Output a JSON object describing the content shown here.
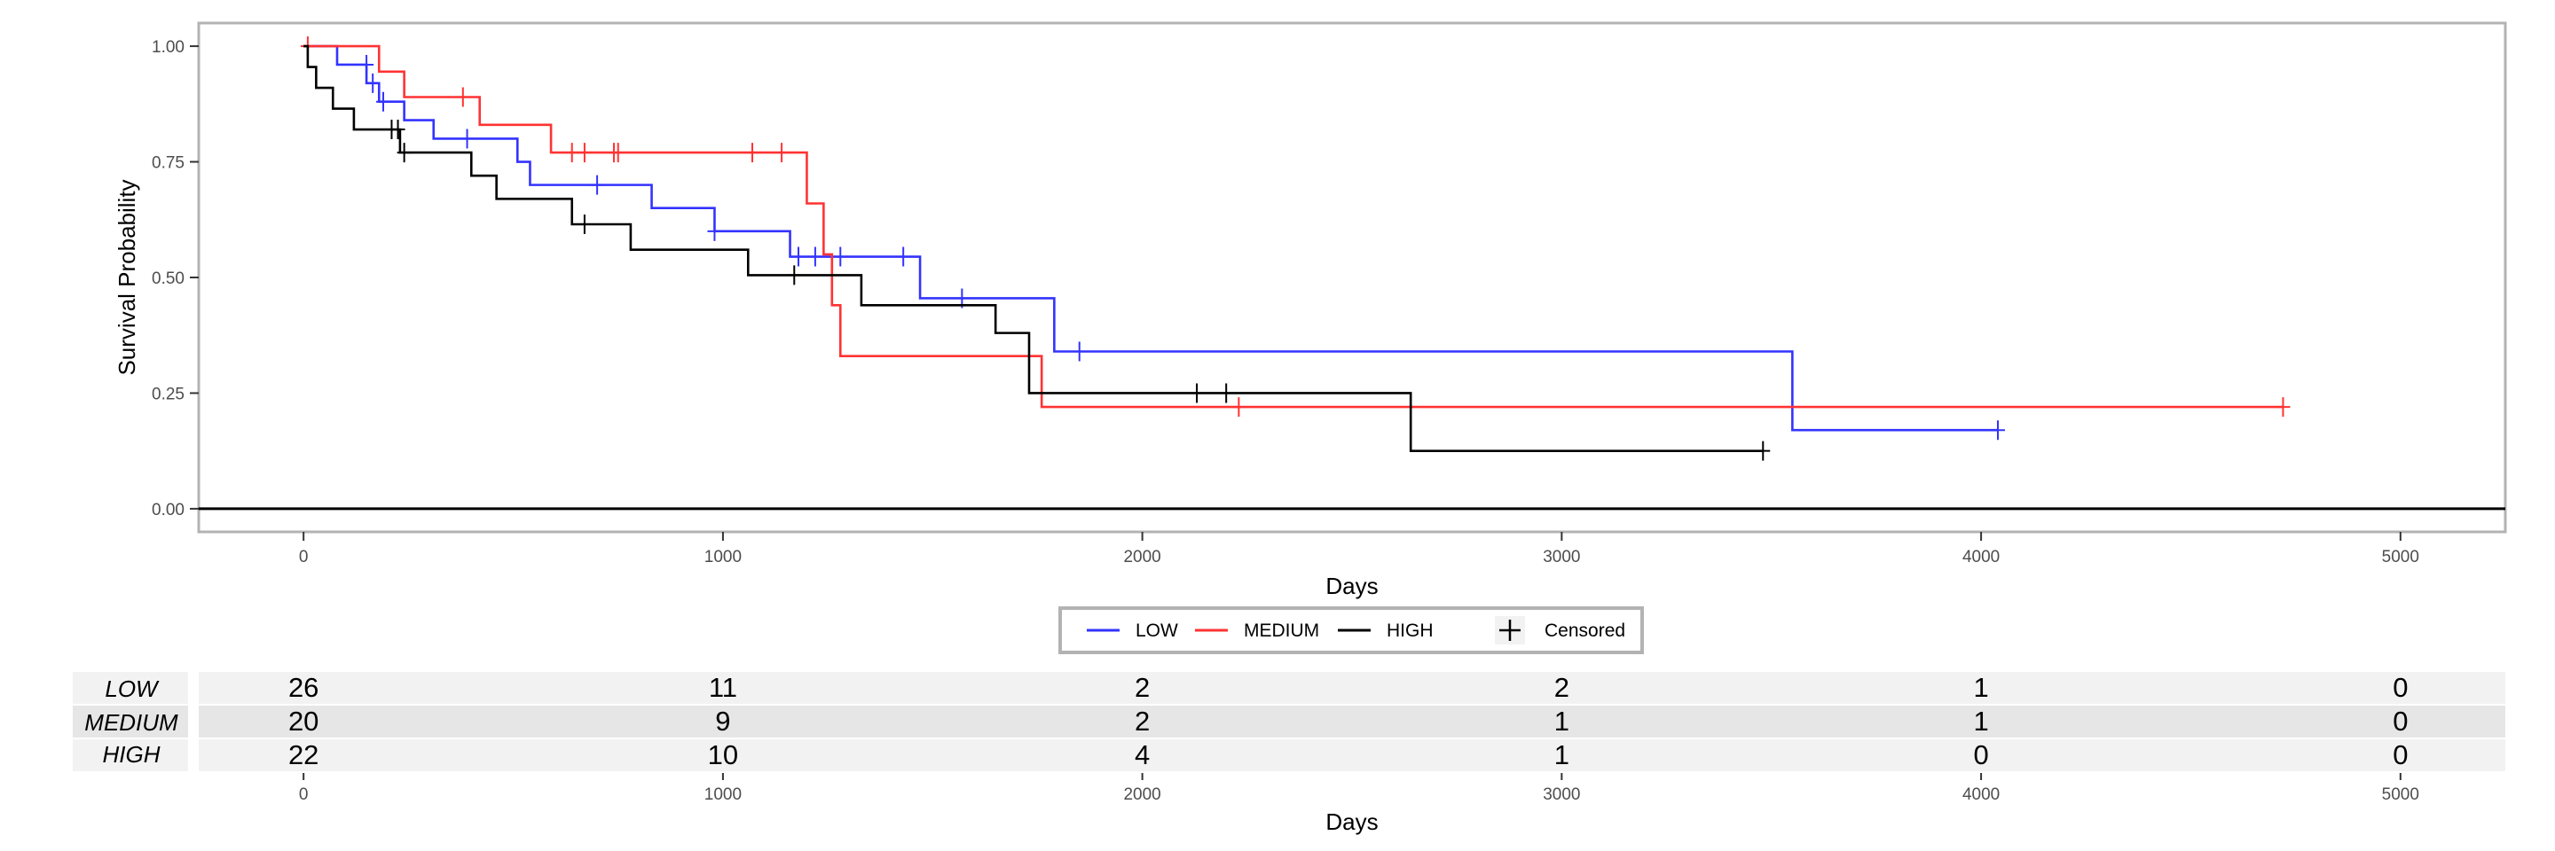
{
  "chart_data": [
    {
      "type": "line",
      "subtype": "kaplan-meier step",
      "xlabel": "Days",
      "ylabel": "Survival Probability",
      "xlim": [
        -250,
        5250
      ],
      "ylim": [
        -0.05,
        1.05
      ],
      "x_ticks": [
        0,
        1000,
        2000,
        3000,
        4000,
        5000
      ],
      "y_ticks": [
        0.0,
        0.25,
        0.5,
        0.75,
        1.0
      ],
      "y_tick_labels": [
        "0.00",
        "0.25",
        "0.50",
        "0.75",
        "1.00"
      ],
      "reference_line_y": 0,
      "legend": {
        "placement": "bottom",
        "entries": [
          "LOW",
          "MEDIUM",
          "HIGH"
        ],
        "censored_label": "Censored"
      },
      "series": [
        {
          "name": "LOW",
          "color": "#3333ff",
          "steps": [
            [
              0,
              1.0
            ],
            [
              80,
              0.96
            ],
            [
              150,
              0.92
            ],
            [
              180,
              0.88
            ],
            [
              240,
              0.84
            ],
            [
              310,
              0.8
            ],
            [
              510,
              0.75
            ],
            [
              540,
              0.7
            ],
            [
              830,
              0.65
            ],
            [
              980,
              0.6
            ],
            [
              1160,
              0.545
            ],
            [
              1470,
              0.455
            ],
            [
              1790,
              0.34
            ],
            [
              3550,
              0.17
            ],
            [
              4040,
              0.17
            ]
          ],
          "censored": [
            [
              150,
              0.96
            ],
            [
              165,
              0.92
            ],
            [
              190,
              0.88
            ],
            [
              390,
              0.8
            ],
            [
              700,
              0.7
            ],
            [
              980,
              0.6
            ],
            [
              1180,
              0.545
            ],
            [
              1220,
              0.545
            ],
            [
              1280,
              0.545
            ],
            [
              1430,
              0.545
            ],
            [
              1570,
              0.455
            ],
            [
              1850,
              0.34
            ],
            [
              4040,
              0.17
            ]
          ]
        },
        {
          "name": "MEDIUM",
          "color": "#ff3333",
          "steps": [
            [
              0,
              1.0
            ],
            [
              180,
              0.945
            ],
            [
              240,
              0.89
            ],
            [
              420,
              0.83
            ],
            [
              590,
              0.77
            ],
            [
              1200,
              0.66
            ],
            [
              1240,
              0.55
            ],
            [
              1260,
              0.44
            ],
            [
              1280,
              0.33
            ],
            [
              1760,
              0.22
            ],
            [
              4720,
              0.22
            ]
          ],
          "censored": [
            [
              10,
              1.0
            ],
            [
              380,
              0.89
            ],
            [
              640,
              0.77
            ],
            [
              670,
              0.77
            ],
            [
              740,
              0.77
            ],
            [
              750,
              0.77
            ],
            [
              1070,
              0.77
            ],
            [
              1140,
              0.77
            ],
            [
              2230,
              0.22
            ],
            [
              4720,
              0.22
            ]
          ]
        },
        {
          "name": "HIGH",
          "color": "#000000",
          "steps": [
            [
              0,
              1.0
            ],
            [
              10,
              0.955
            ],
            [
              30,
              0.91
            ],
            [
              70,
              0.865
            ],
            [
              120,
              0.82
            ],
            [
              230,
              0.77
            ],
            [
              400,
              0.72
            ],
            [
              460,
              0.67
            ],
            [
              640,
              0.615
            ],
            [
              780,
              0.56
            ],
            [
              1060,
              0.505
            ],
            [
              1330,
              0.44
            ],
            [
              1650,
              0.38
            ],
            [
              1730,
              0.25
            ],
            [
              2640,
              0.125
            ],
            [
              3480,
              0.125
            ]
          ],
          "censored": [
            [
              210,
              0.82
            ],
            [
              225,
              0.82
            ],
            [
              240,
              0.77
            ],
            [
              670,
              0.615
            ],
            [
              1170,
              0.505
            ],
            [
              2130,
              0.25
            ],
            [
              2200,
              0.25
            ],
            [
              3480,
              0.125
            ]
          ]
        }
      ]
    },
    {
      "type": "table",
      "subtype": "number at risk",
      "xlabel": "Days",
      "x_ticks": [
        0,
        1000,
        2000,
        3000,
        4000,
        5000
      ],
      "rows": [
        {
          "name": "LOW",
          "values": [
            26,
            11,
            2,
            2,
            1,
            0
          ]
        },
        {
          "name": "MEDIUM",
          "values": [
            20,
            9,
            2,
            1,
            1,
            0
          ]
        },
        {
          "name": "HIGH",
          "values": [
            22,
            10,
            4,
            1,
            0,
            0
          ]
        }
      ]
    }
  ]
}
